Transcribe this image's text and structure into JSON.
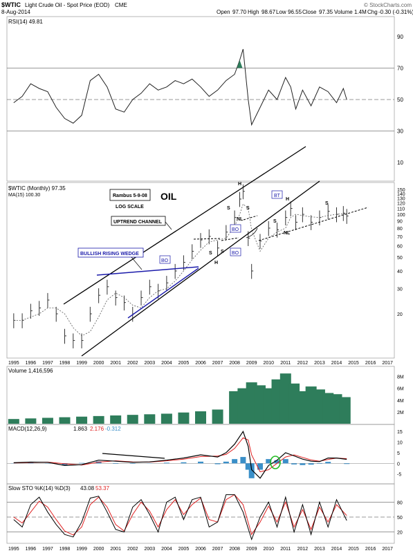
{
  "header": {
    "symbol": "$WTIC",
    "name": "Light Crude Oil - Spot Price (EOD)",
    "exchange": "CME",
    "date": "8-Aug-2014",
    "brand": "© StockCharts.com",
    "open_label": "Open",
    "open": "97.70",
    "high_label": "High",
    "high": "98.67",
    "low_label": "Low",
    "low": "96.55",
    "close_label": "Close",
    "close": "97.35",
    "volume_label": "Volume",
    "volume": "1.4M",
    "chg_label": "Chg",
    "chg": "-0.30 (-0.31%)"
  },
  "colors": {
    "price_bars": "#333333",
    "volume": "#2e7d5b",
    "macd_line": "#000000",
    "signal_line": "#e02020",
    "histogram": "#3a8fc8",
    "stoch_k": "#000000",
    "stoch_d": "#e02020",
    "trendline_blue": "#1a1aaa",
    "rsi_overbought_fill": "#2e7d5b",
    "annotation_green": "#22bb22"
  },
  "chart_data": [
    {
      "type": "line",
      "panel": "rsi",
      "legend": "RSI(14) 49.81",
      "yticks": [
        10,
        30,
        50,
        70,
        90
      ],
      "ylim": [
        0,
        100
      ],
      "ref_lines": [
        30,
        50,
        70
      ],
      "x": [
        1995.0,
        1995.5,
        1996.0,
        1996.5,
        1997.0,
        1997.5,
        1998.0,
        1998.5,
        1999.0,
        1999.5,
        2000.0,
        2000.5,
        2001.0,
        2001.5,
        2002.0,
        2002.5,
        2003.0,
        2003.5,
        2004.0,
        2004.5,
        2005.0,
        2005.5,
        2006.0,
        2006.5,
        2007.0,
        2007.5,
        2008.0,
        2008.3,
        2008.5,
        2008.8,
        2009.0,
        2009.5,
        2010.0,
        2010.5,
        2011.0,
        2011.3,
        2011.6,
        2012.0,
        2012.5,
        2013.0,
        2013.5,
        2014.0,
        2014.4,
        2014.6
      ],
      "y": [
        48,
        52,
        60,
        57,
        55,
        45,
        38,
        35,
        40,
        62,
        66,
        58,
        44,
        42,
        50,
        54,
        60,
        56,
        58,
        62,
        60,
        63,
        58,
        52,
        56,
        62,
        66,
        75,
        82,
        50,
        34,
        45,
        56,
        50,
        64,
        58,
        44,
        56,
        46,
        58,
        55,
        48,
        57,
        50
      ]
    },
    {
      "type": "bar",
      "panel": "price",
      "legend": "$WTIC (Monthly) 97.35",
      "legend2": "MA(15) 100.30",
      "scale": "log",
      "ylim": [
        10,
        160
      ],
      "yticks": [
        20,
        30,
        40,
        50,
        60,
        70,
        80,
        90,
        100,
        110,
        120,
        130,
        140,
        150
      ],
      "x": [
        1995.0,
        1995.5,
        1996.0,
        1996.5,
        1997.0,
        1997.5,
        1998.0,
        1998.5,
        1999.0,
        1999.5,
        2000.0,
        2000.5,
        2001.0,
        2001.5,
        2002.0,
        2002.5,
        2003.0,
        2003.5,
        2004.0,
        2004.5,
        2005.0,
        2005.5,
        2006.0,
        2006.5,
        2007.0,
        2007.5,
        2008.0,
        2008.3,
        2008.5,
        2008.8,
        2009.0,
        2009.5,
        2010.0,
        2010.5,
        2011.0,
        2011.3,
        2011.6,
        2012.0,
        2012.5,
        2013.0,
        2013.5,
        2014.0,
        2014.4,
        2014.6
      ],
      "close": [
        18,
        18,
        21,
        22,
        25,
        20,
        14,
        13,
        13,
        20,
        27,
        31,
        26,
        24,
        20,
        26,
        31,
        29,
        33,
        40,
        46,
        55,
        66,
        70,
        58,
        75,
        95,
        128,
        145,
        68,
        40,
        65,
        80,
        78,
        95,
        110,
        88,
        100,
        88,
        95,
        105,
        100,
        102,
        97.35
      ],
      "ma15": [
        18,
        18,
        19,
        20,
        22,
        22,
        20,
        16,
        14,
        15,
        19,
        25,
        28,
        26,
        23,
        22,
        26,
        29,
        30,
        34,
        40,
        48,
        56,
        64,
        66,
        68,
        82,
        100,
        118,
        110,
        78,
        55,
        68,
        75,
        80,
        95,
        100,
        98,
        96,
        95,
        98,
        100,
        101,
        100.3
      ],
      "annotations": [
        "Rambus  5-9-08",
        "LOG SCALE",
        "OIL",
        "UPTREND CHANNEL",
        "BULLISH RISING WEDGE",
        "BO",
        "BO",
        "BO",
        "BT",
        "H",
        "H",
        "H",
        "S",
        "S",
        "S",
        "S",
        "S",
        "S",
        "NL",
        "NL"
      ]
    },
    {
      "type": "bar",
      "panel": "volume",
      "legend": "Volume 1,416,596",
      "yticks": [
        "2M",
        "4M",
        "6M",
        "8M"
      ],
      "ylim": [
        0,
        9
      ],
      "x": [
        1995.0,
        1996.0,
        1997.0,
        1998.0,
        1999.0,
        2000.0,
        2001.0,
        2002.0,
        2003.0,
        2004.0,
        2005.0,
        2006.0,
        2007.0,
        2008.0,
        2008.5,
        2009.0,
        2009.5,
        2010.0,
        2010.5,
        2011.0,
        2011.5,
        2012.0,
        2012.5,
        2013.0,
        2013.5,
        2014.0,
        2014.5
      ],
      "values": [
        0.8,
        0.9,
        1.0,
        1.1,
        1.2,
        1.3,
        1.4,
        1.5,
        1.6,
        1.7,
        1.9,
        2.1,
        2.4,
        5.5,
        6.0,
        7.0,
        6.5,
        6.0,
        7.5,
        8.5,
        6.8,
        5.5,
        6.3,
        5.8,
        5.2,
        5.0,
        4.5
      ]
    },
    {
      "type": "line",
      "panel": "macd",
      "legend": "MACD(12,26,9)",
      "macd_value": "1.863",
      "signal_value": "2.176",
      "hist_value": "-0.312",
      "yticks": [
        -5,
        0,
        5,
        10,
        15
      ],
      "ylim": [
        -9,
        17
      ],
      "x": [
        1995.0,
        1996.0,
        1997.0,
        1998.0,
        1999.0,
        2000.0,
        2001.0,
        2002.0,
        2003.0,
        2004.0,
        2005.0,
        2006.0,
        2007.0,
        2007.5,
        2008.0,
        2008.5,
        2008.8,
        2009.0,
        2009.5,
        2010.0,
        2010.5,
        2011.0,
        2011.5,
        2012.0,
        2012.5,
        2013.0,
        2013.5,
        2014.0,
        2014.6
      ],
      "macd": [
        0.3,
        0.6,
        0.5,
        -1.0,
        -0.6,
        1.5,
        1.0,
        0.5,
        0.7,
        1.5,
        2.5,
        4.0,
        3.0,
        5.0,
        9.0,
        15.0,
        8.0,
        -3.0,
        -7.0,
        -1.0,
        1.5,
        5.0,
        3.5,
        2.0,
        1.0,
        0.8,
        2.5,
        2.5,
        1.9
      ],
      "signal": [
        0.2,
        0.4,
        0.6,
        -0.2,
        -0.8,
        0.6,
        1.2,
        0.7,
        0.6,
        1.2,
        2.0,
        3.2,
        3.4,
        4.2,
        7.0,
        12.0,
        11.0,
        4.0,
        -4.0,
        -3.0,
        0.0,
        3.0,
        4.0,
        2.8,
        1.6,
        1.0,
        1.8,
        2.5,
        2.2
      ]
    },
    {
      "type": "line",
      "panel": "stochastic",
      "legend": "Slow STO %K(14) %D(3)",
      "k_value": "43.08",
      "d_value": "53.37",
      "yticks": [
        20,
        50,
        80
      ],
      "ylim": [
        0,
        100
      ],
      "ref_lines": [
        20,
        50,
        80
      ],
      "x": [
        1995.0,
        1995.5,
        1996.0,
        1996.5,
        1997.0,
        1997.5,
        1998.0,
        1998.5,
        1999.0,
        1999.5,
        2000.0,
        2000.5,
        2001.0,
        2001.5,
        2002.0,
        2002.5,
        2003.0,
        2003.5,
        2004.0,
        2004.5,
        2005.0,
        2005.5,
        2006.0,
        2006.5,
        2007.0,
        2007.5,
        2008.0,
        2008.5,
        2009.0,
        2009.5,
        2010.0,
        2010.5,
        2011.0,
        2011.5,
        2012.0,
        2012.5,
        2013.0,
        2013.5,
        2014.0,
        2014.6
      ],
      "k": [
        45,
        30,
        75,
        90,
        60,
        35,
        15,
        10,
        40,
        88,
        92,
        60,
        25,
        20,
        70,
        85,
        55,
        20,
        80,
        90,
        45,
        85,
        90,
        30,
        40,
        95,
        95,
        60,
        5,
        50,
        80,
        30,
        90,
        20,
        75,
        15,
        80,
        30,
        85,
        43
      ],
      "d": [
        50,
        38,
        60,
        82,
        70,
        45,
        22,
        14,
        30,
        75,
        90,
        70,
        35,
        22,
        55,
        80,
        62,
        30,
        65,
        85,
        55,
        75,
        88,
        45,
        40,
        85,
        95,
        75,
        15,
        40,
        72,
        40,
        80,
        30,
        65,
        25,
        70,
        40,
        75,
        53
      ]
    }
  ],
  "x_axis": {
    "years": [
      "1995",
      "1996",
      "1997",
      "1998",
      "1999",
      "2000",
      "2001",
      "2002",
      "2003",
      "2004",
      "2005",
      "2006",
      "2007",
      "2008",
      "2009",
      "2010",
      "2011",
      "2012",
      "2013",
      "2014",
      "2015",
      "2016",
      "2017"
    ]
  }
}
